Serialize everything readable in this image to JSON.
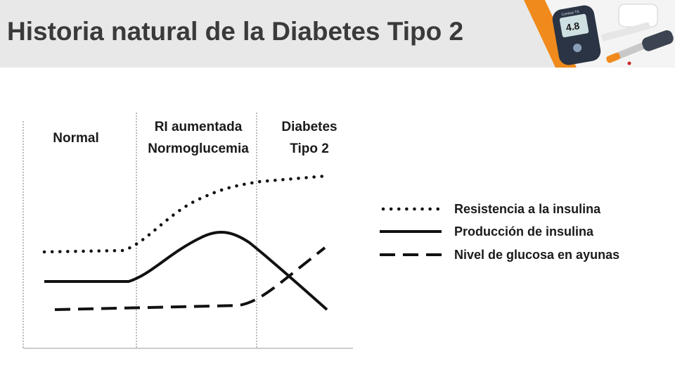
{
  "slide": {
    "title": "Historia natural de la Diabetes Tipo 2"
  },
  "photo": {
    "meter_display": "4.8",
    "meter_brand": "Contour TS"
  },
  "diagram": {
    "phases": [
      {
        "lines": [
          "Normal"
        ]
      },
      {
        "lines": [
          "RI aumentada",
          "Normoglucemia"
        ]
      },
      {
        "lines": [
          "Diabetes",
          "Tipo 2"
        ]
      }
    ],
    "legend": [
      {
        "label": "Resistencia a la insulina",
        "style": "dotted"
      },
      {
        "label": "Producción de insulina",
        "style": "solid"
      },
      {
        "label": "Nivel de glucosa en ayunas",
        "style": "dashed"
      }
    ]
  },
  "colors": {
    "header_bg": "#e8e8e8",
    "title_text": "#3a3a3a",
    "accent_orange": "#f08a1c",
    "curve": "#111111"
  }
}
